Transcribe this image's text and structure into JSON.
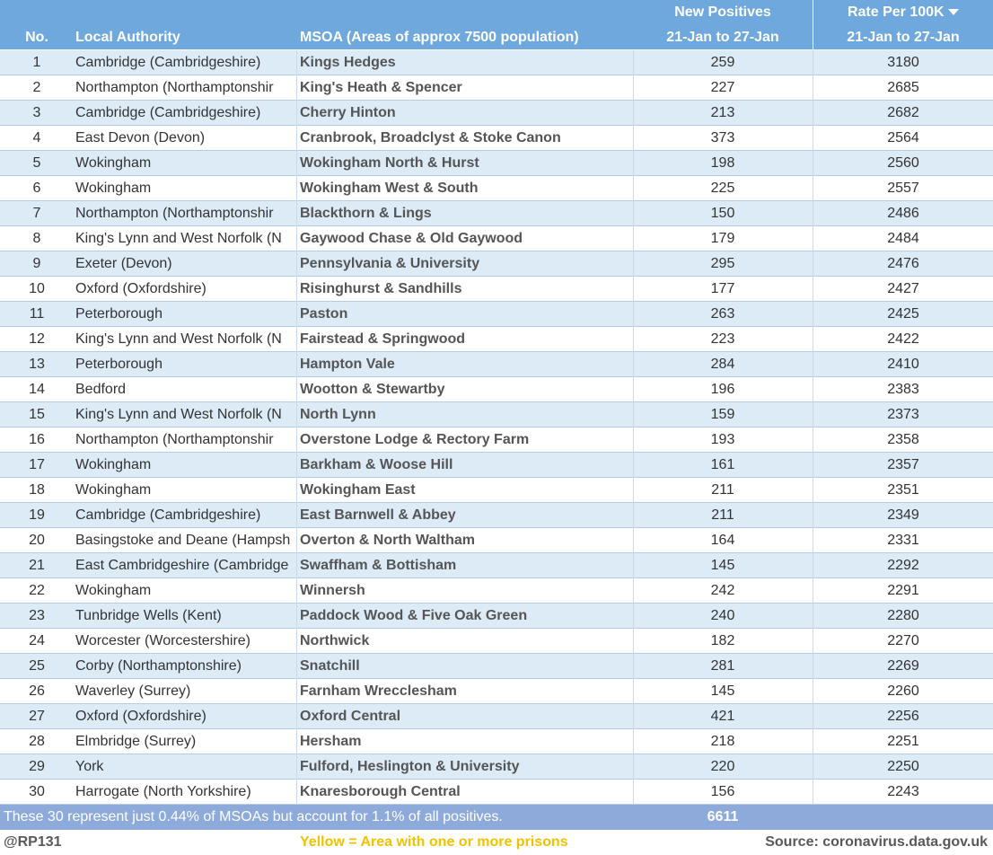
{
  "header": {
    "no": "No.",
    "authority": "Local Authority",
    "msoa": "MSOA (Areas of approx 7500 population)",
    "positives": "New Positives",
    "positives_period": "21-Jan to 27-Jan",
    "rate": "Rate Per 100K",
    "rate_period": "21-Jan to 27-Jan"
  },
  "rows": [
    [
      1,
      "Cambridge (Cambridgeshire)",
      "Kings Hedges",
      259,
      3180
    ],
    [
      2,
      "Northampton (Northamptonshir",
      "King's Heath & Spencer",
      227,
      2685
    ],
    [
      3,
      "Cambridge (Cambridgeshire)",
      "Cherry Hinton",
      213,
      2682
    ],
    [
      4,
      "East Devon (Devon)",
      "Cranbrook, Broadclyst & Stoke Canon",
      373,
      2564
    ],
    [
      5,
      "Wokingham",
      "Wokingham North & Hurst",
      198,
      2560
    ],
    [
      6,
      "Wokingham",
      "Wokingham West & South",
      225,
      2557
    ],
    [
      7,
      "Northampton (Northamptonshir",
      "Blackthorn & Lings",
      150,
      2486
    ],
    [
      8,
      "King's Lynn and West Norfolk (N",
      "Gaywood Chase & Old Gaywood",
      179,
      2484
    ],
    [
      9,
      "Exeter (Devon)",
      "Pennsylvania & University",
      295,
      2476
    ],
    [
      10,
      "Oxford (Oxfordshire)",
      "Risinghurst & Sandhills",
      177,
      2427
    ],
    [
      11,
      "Peterborough",
      "Paston",
      263,
      2425
    ],
    [
      12,
      "King's Lynn and West Norfolk (N",
      "Fairstead & Springwood",
      223,
      2422
    ],
    [
      13,
      "Peterborough",
      "Hampton Vale",
      284,
      2410
    ],
    [
      14,
      "Bedford",
      "Wootton & Stewartby",
      196,
      2383
    ],
    [
      15,
      "King's Lynn and West Norfolk (N",
      "North Lynn",
      159,
      2373
    ],
    [
      16,
      "Northampton (Northamptonshir",
      "Overstone Lodge & Rectory Farm",
      193,
      2358
    ],
    [
      17,
      "Wokingham",
      "Barkham & Woose Hill",
      161,
      2357
    ],
    [
      18,
      "Wokingham",
      "Wokingham East",
      211,
      2351
    ],
    [
      19,
      "Cambridge (Cambridgeshire)",
      "East Barnwell & Abbey",
      211,
      2349
    ],
    [
      20,
      "Basingstoke and Deane (Hampsh",
      "Overton & North Waltham",
      164,
      2331
    ],
    [
      21,
      "East Cambridgeshire (Cambridge",
      "Swaffham & Bottisham",
      145,
      2292
    ],
    [
      22,
      "Wokingham",
      "Winnersh",
      242,
      2291
    ],
    [
      23,
      "Tunbridge Wells (Kent)",
      "Paddock Wood & Five Oak Green",
      240,
      2280
    ],
    [
      24,
      "Worcester (Worcestershire)",
      "Northwick",
      182,
      2270
    ],
    [
      25,
      "Corby (Northamptonshire)",
      "Snatchill",
      281,
      2269
    ],
    [
      26,
      "Waverley (Surrey)",
      "Farnham Wrecclesham",
      145,
      2260
    ],
    [
      27,
      "Oxford (Oxfordshire)",
      "Oxford Central",
      421,
      2256
    ],
    [
      28,
      "Elmbridge (Surrey)",
      "Hersham",
      218,
      2251
    ],
    [
      29,
      "York",
      "Fulford, Heslington & University",
      220,
      2250
    ],
    [
      30,
      "Harrogate (North Yorkshire)",
      "Knaresborough Central",
      156,
      2243
    ]
  ],
  "footer": {
    "note": "These 30 represent just 0.44% of MSOAs but account for 1.1% of all positives.",
    "total": 6611
  },
  "credits": {
    "author": "@RP131",
    "legend": "Yellow = Area with one or more prisons",
    "source": "Source: coronavirus.data.gov.uk"
  }
}
